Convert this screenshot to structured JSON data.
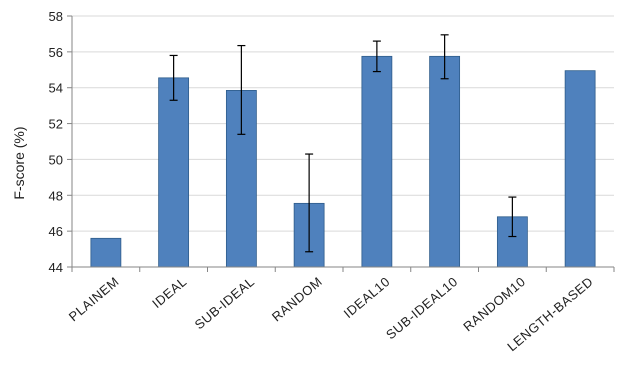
{
  "chart_data": {
    "type": "bar",
    "ylabel": "F-score (%)",
    "xlabel": "",
    "ylim": [
      44,
      58
    ],
    "yticks": [
      44,
      46,
      48,
      50,
      52,
      54,
      56,
      58
    ],
    "grid": true,
    "categories": [
      "PlainEM",
      "Ideal",
      "Sub-Ideal",
      "Random",
      "Ideal10",
      "Sub-Ideal10",
      "Random10",
      "Length-Based"
    ],
    "category_display": [
      "PLAINEM",
      "IDEAL",
      "SUB-IDEAL",
      "RANDOM",
      "IDEAL10",
      "SUB-IDEAL10",
      "RANDOM10",
      "LENGTH-BASED"
    ],
    "values": [
      45.6,
      54.55,
      53.85,
      47.55,
      55.75,
      55.75,
      46.8,
      54.95
    ],
    "error_low": [
      null,
      53.3,
      51.4,
      44.85,
      54.9,
      54.5,
      45.7,
      null
    ],
    "error_high": [
      null,
      55.8,
      56.35,
      50.3,
      56.6,
      56.95,
      47.9,
      null
    ],
    "colors": {
      "bar_fill": "#4F81BD",
      "bar_stroke": "#2E5C8A",
      "grid": "#d9d9d9",
      "axis": "#868686"
    }
  }
}
